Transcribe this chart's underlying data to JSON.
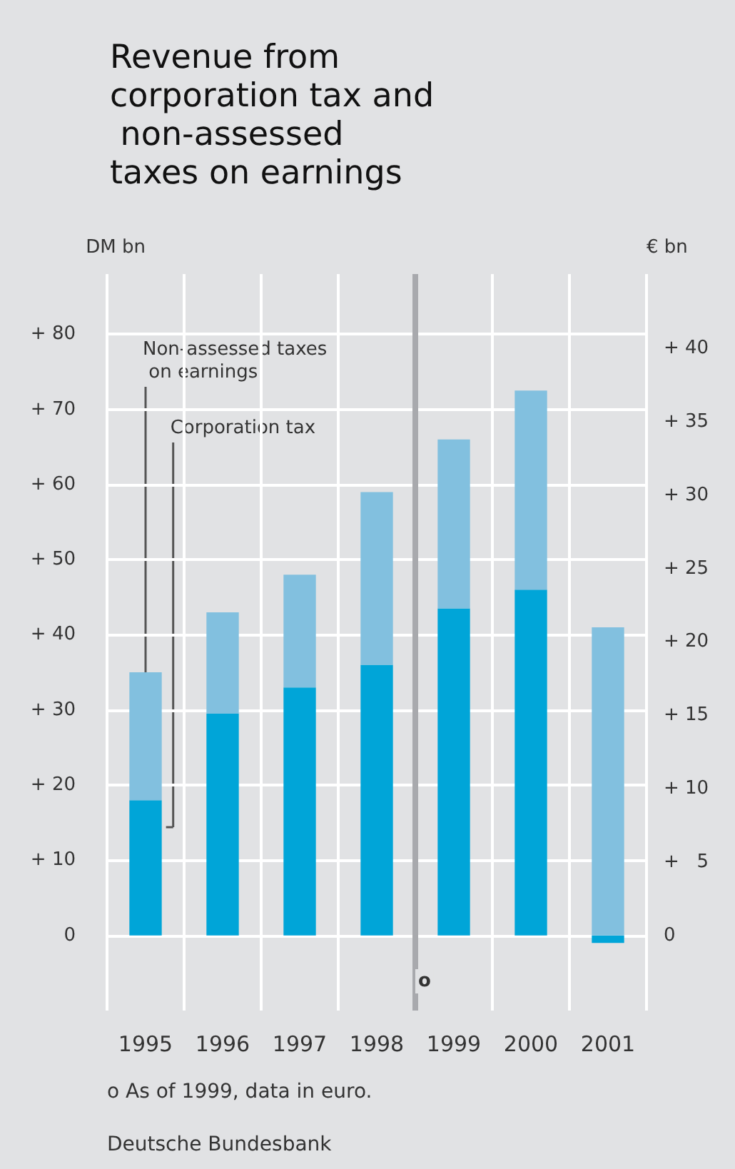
{
  "chart_data": {
    "type": "bar",
    "title": "Revenue from corporation tax and non-assessed taxes on earnings",
    "ylabel": "DM bn",
    "y2label": "€ bn",
    "categories": [
      "1995",
      "1996",
      "1997",
      "1998",
      "1999",
      "2000",
      "2001"
    ],
    "stacked": true,
    "series": [
      {
        "name": "Corporation tax",
        "color": "#00a5d8",
        "values": [
          18,
          29.5,
          33,
          36,
          43.5,
          46,
          -1
        ]
      },
      {
        "name": "Non-assessed taxes on earnings",
        "color": "#82c0df",
        "values": [
          17,
          13.5,
          15,
          23,
          22.5,
          26.5,
          41
        ]
      }
    ],
    "ylim": [
      -10,
      88
    ],
    "yticks": [
      0,
      {
        "value": 10,
        "label": "+ 10"
      },
      {
        "value": 20,
        "label": "+ 20"
      },
      {
        "value": 30,
        "label": "+ 30"
      },
      {
        "value": 40,
        "label": "+ 40"
      },
      {
        "value": 50,
        "label": "+ 50"
      },
      {
        "value": 60,
        "label": "+ 60"
      },
      {
        "value": 70,
        "label": "+ 70"
      },
      {
        "value": 80,
        "label": "+ 80"
      }
    ],
    "y2lim": [
      -5.12,
      45.06
    ],
    "y2ticks": [
      0,
      {
        "value": 5,
        "label": "+   5"
      },
      {
        "value": 10,
        "label": "+ 10"
      },
      {
        "value": 15,
        "label": "+ 15"
      },
      {
        "value": 20,
        "label": "+ 20"
      },
      {
        "value": 25,
        "label": "+ 25"
      },
      {
        "value": 30,
        "label": "+ 30"
      },
      {
        "value": 35,
        "label": "+ 35"
      },
      {
        "value": 40,
        "label": "+ 40"
      }
    ],
    "ref_lines": [
      {
        "axis": "x",
        "value": "1999",
        "label": "o",
        "color": "#a8a9ad"
      }
    ],
    "grid": true,
    "legend": false,
    "annotations": [
      "o As of 1999, data in euro.",
      "Deutsche Bundesbank"
    ]
  }
}
